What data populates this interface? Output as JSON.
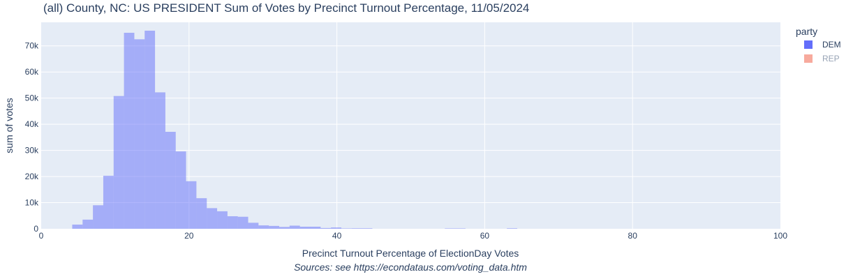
{
  "chart_data": {
    "type": "bar",
    "title": "(all) County, NC: US PRESIDENT Sum of Votes by Precinct Turnout Percentage, 11/05/2024",
    "xlabel": "Precinct Turnout Percentage of ElectionDay Votes",
    "ylabel": "sum of votes",
    "source_note": "Sources: see https://econdataus.com/voting_data.htm",
    "xlim": [
      0,
      100
    ],
    "ylim": [
      0,
      79000
    ],
    "x_ticks": [
      0,
      20,
      40,
      60,
      80,
      100
    ],
    "x_tick_labels": [
      "0",
      "20",
      "40",
      "60",
      "80",
      "100"
    ],
    "y_ticks": [
      0,
      10000,
      20000,
      30000,
      40000,
      50000,
      60000,
      70000
    ],
    "y_tick_labels": [
      "0",
      "10k",
      "20k",
      "30k",
      "40k",
      "50k",
      "60k",
      "70k"
    ],
    "bin_width": 1.4,
    "grid": true,
    "legend": {
      "title": "party",
      "position": "top-right",
      "items": [
        {
          "name": "DEM",
          "color": "#636efa",
          "visible": true
        },
        {
          "name": "REP",
          "color": "#ef553b",
          "visible": false
        }
      ]
    },
    "series": [
      {
        "name": "DEM",
        "color": "#636efa",
        "bin_starts": [
          4.2,
          5.6,
          7.0,
          8.4,
          9.8,
          11.2,
          12.6,
          14.0,
          15.4,
          16.8,
          18.2,
          19.6,
          21.0,
          22.4,
          23.8,
          25.2,
          26.6,
          28.0,
          29.4,
          30.8,
          32.2,
          33.6,
          35.0,
          36.4,
          37.8,
          39.2,
          40.6,
          42.0,
          43.4,
          54.6,
          56.0,
          63.0
        ],
        "values": [
          1600,
          3500,
          9000,
          20300,
          50800,
          75000,
          72500,
          75800,
          52200,
          37100,
          29600,
          18200,
          11700,
          7900,
          6700,
          4800,
          4600,
          2300,
          1300,
          1100,
          700,
          1200,
          800,
          800,
          300,
          500,
          150,
          200,
          200,
          150,
          150,
          200
        ]
      }
    ]
  }
}
